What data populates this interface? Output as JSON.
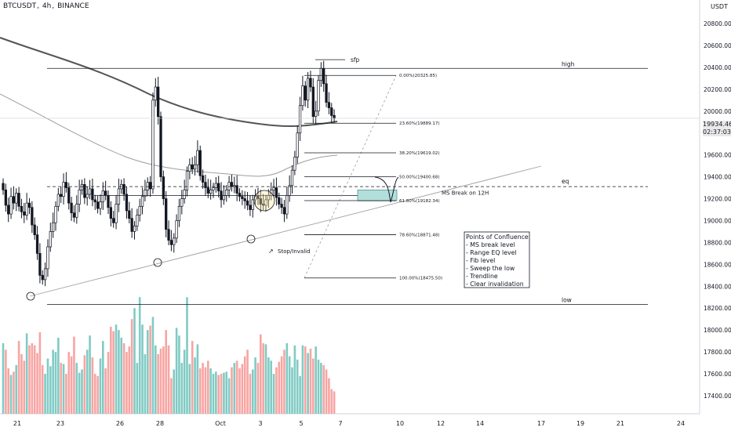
{
  "header": {
    "symbol": "BTCUSDT",
    "timeframe": "4h",
    "exchange": "BINANCE"
  },
  "price_axis": {
    "currency": "USDT",
    "ticks": [
      "20800.00",
      "20600.00",
      "20400.00",
      "20200.00",
      "20000.00",
      "19800.00",
      "19600.00",
      "19400.00",
      "19200.00",
      "19000.00",
      "18800.00",
      "18600.00",
      "18400.00",
      "18200.00",
      "18000.00",
      "17800.00",
      "17600.00",
      "17400.00"
    ],
    "current_price": "19934.46",
    "countdown": "02:37:03"
  },
  "time_axis": {
    "ticks": [
      "21",
      "23",
      "26",
      "28",
      "Oct",
      "3",
      "5",
      "7",
      "10",
      "12",
      "14",
      "17",
      "19",
      "21",
      "24"
    ]
  },
  "levels": {
    "high": "high",
    "eq": "eq",
    "low": "low",
    "sfp": "sfp",
    "ms_break": "MS Break on 12H",
    "stop": "Stop/Invalid"
  },
  "fib_levels": [
    {
      "label": "0.00%(20325.85)",
      "price": 20325.85
    },
    {
      "label": "23.60%(19889.17)",
      "price": 19889.17
    },
    {
      "label": "38.20%(19619.02)",
      "price": 19619.02
    },
    {
      "label": "50.00%(19400.68)",
      "price": 19400.68
    },
    {
      "label": "61.80%(19182.34)",
      "price": 19182.34
    },
    {
      "label": "78.60%(18871.48)",
      "price": 18871.48
    },
    {
      "label": "100.00%(18475.50)",
      "price": 18475.5
    }
  ],
  "confluence": {
    "title": "Points of Confluence",
    "items": [
      "- MS break level",
      "- Range EQ level",
      "- Fib level",
      "- Sweep the low",
      "- Trendline",
      "- Clear invalidation"
    ]
  },
  "colors": {
    "up": "#26a69a",
    "down": "#ef5350",
    "candle": "#131722",
    "vol_up": "#80cbc4",
    "vol_down": "#f7a5a3",
    "ma_dark": "#555555",
    "ma_light": "#9e9e9e",
    "zone": "#b2dfdb"
  },
  "chart_data": {
    "type": "candlestick",
    "y_min": 17400,
    "y_max": 21000,
    "price_range_shown": [
      17400,
      20900
    ],
    "key_levels": {
      "high": 20390,
      "eq": 19310,
      "low": 18235,
      "ms_break_top": 19280,
      "ms_break_bottom": 19180
    },
    "candles_close": [
      19280,
      19140,
      19060,
      19220,
      19160,
      19250,
      19130,
      19080,
      19050,
      19160,
      19120,
      18960,
      18870,
      18700,
      18500,
      18460,
      18560,
      18760,
      18900,
      18980,
      19130,
      19240,
      19220,
      19350,
      19300,
      19160,
      19070,
      19030,
      19150,
      19280,
      19330,
      19210,
      19240,
      19290,
      19190,
      19170,
      19110,
      19170,
      19270,
      19230,
      19120,
      19020,
      18980,
      19150,
      19290,
      19330,
      19240,
      19090,
      19020,
      18900,
      18950,
      19050,
      19130,
      19220,
      19280,
      19350,
      19290,
      20100,
      20220,
      19950,
      19400,
      19200,
      18920,
      18820,
      18780,
      18840,
      19000,
      19130,
      19200,
      19280,
      19450,
      19510,
      19470,
      19510,
      19640,
      19410,
      19350,
      19300,
      19250,
      19280,
      19300,
      19340,
      19270,
      19190,
      19230,
      19280,
      19350,
      19310,
      19320,
      19250,
      19220,
      19200,
      19180,
      19140,
      19100,
      19190,
      19230,
      19200,
      19150,
      19140,
      19190,
      19230,
      19280,
      19300,
      19210,
      19150,
      19120,
      19060,
      19230,
      19320,
      19460,
      19580,
      19800,
      20050,
      20230,
      20100,
      20300,
      20220,
      19950,
      20000,
      20280,
      20390,
      20250,
      20080,
      20030,
      19960,
      19934
    ],
    "volume": [
      17880,
      17820,
      17650,
      17590,
      17620,
      17680,
      17900,
      17780,
      17720,
      17970,
      17860,
      17880,
      17860,
      17790,
      17980,
      17680,
      17600,
      17740,
      17670,
      17820,
      17800,
      17930,
      17700,
      17690,
      17600,
      17800,
      17760,
      17940,
      17700,
      17610,
      17640,
      17770,
      17820,
      17950,
      17750,
      17600,
      17580,
      17740,
      17900,
      17650,
      17800,
      18030,
      17990,
      18050,
      18000,
      17930,
      17880,
      17800,
      17850,
      18100,
      18200,
      17700,
      18300,
      18050,
      17780,
      18000,
      18040,
      18120,
      17860,
      17780,
      17830,
      17850,
      18000,
      17860,
      17560,
      17640,
      18020,
      17950,
      17700,
      17820,
      18300,
      17690,
      17900,
      17750,
      17870,
      17650,
      17700,
      17660,
      17720,
      17650,
      17600,
      17620,
      17590,
      17600,
      17610,
      17620,
      17560,
      17660,
      17700,
      17720,
      17650,
      17690,
      17760,
      17820,
      17600,
      17640,
      17750,
      17700,
      17960,
      17880,
      17870,
      17750,
      17720,
      17600,
      17660,
      17710,
      17760,
      17820,
      17880,
      17760,
      17660,
      17860,
      17730,
      17580,
      17860,
      17850,
      17790,
      17830,
      17740,
      17850,
      17730,
      17700,
      17680,
      17640,
      17560,
      17460,
      17440
    ]
  }
}
